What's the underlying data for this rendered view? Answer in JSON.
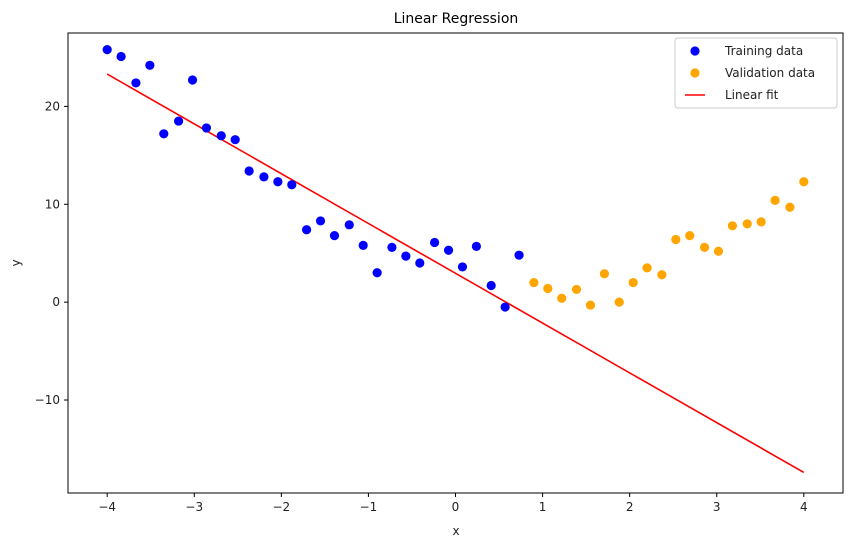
{
  "chart_data": {
    "type": "scatter",
    "title": "Linear Regression",
    "xlabel": "x",
    "ylabel": "y",
    "xlim": [
      -4.45,
      4.45
    ],
    "ylim": [
      -19.5,
      27.5
    ],
    "xticks": [
      -4,
      -3,
      -2,
      -1,
      0,
      1,
      2,
      3,
      4
    ],
    "yticks": [
      -10,
      0,
      10,
      20
    ],
    "xtick_labels": [
      "−4",
      "−3",
      "−2",
      "−1",
      "0",
      "1",
      "2",
      "3",
      "4"
    ],
    "ytick_labels": [
      "−10",
      "0",
      "10",
      "20"
    ],
    "grid": false,
    "legend_position": "top-right",
    "series": [
      {
        "name": "Training data",
        "kind": "scatter",
        "color": "#0000ff",
        "points": [
          [
            -4.0,
            25.8
          ],
          [
            -3.84,
            25.1
          ],
          [
            -3.67,
            22.4
          ],
          [
            -3.51,
            24.2
          ],
          [
            -3.35,
            17.2
          ],
          [
            -3.18,
            18.5
          ],
          [
            -3.02,
            22.7
          ],
          [
            -2.86,
            17.8
          ],
          [
            -2.69,
            17.0
          ],
          [
            -2.53,
            16.6
          ],
          [
            -2.37,
            13.4
          ],
          [
            -2.2,
            12.8
          ],
          [
            -2.04,
            12.3
          ],
          [
            -1.88,
            12.0
          ],
          [
            -1.71,
            7.4
          ],
          [
            -1.55,
            8.3
          ],
          [
            -1.39,
            6.8
          ],
          [
            -1.22,
            7.9
          ],
          [
            -1.06,
            5.8
          ],
          [
            -0.9,
            3.0
          ],
          [
            -0.73,
            5.6
          ],
          [
            -0.57,
            4.7
          ],
          [
            -0.41,
            4.0
          ],
          [
            -0.24,
            6.1
          ],
          [
            -0.08,
            5.3
          ],
          [
            0.08,
            3.6
          ],
          [
            0.24,
            5.7
          ],
          [
            0.41,
            1.7
          ],
          [
            0.57,
            -0.5
          ],
          [
            0.73,
            4.8
          ]
        ]
      },
      {
        "name": "Validation data",
        "kind": "scatter",
        "color": "#ffa500",
        "points": [
          [
            0.9,
            2.0
          ],
          [
            1.06,
            1.4
          ],
          [
            1.22,
            0.4
          ],
          [
            1.39,
            1.3
          ],
          [
            1.55,
            -0.3
          ],
          [
            1.71,
            2.9
          ],
          [
            1.88,
            0.0
          ],
          [
            2.04,
            2.0
          ],
          [
            2.2,
            3.5
          ],
          [
            2.37,
            2.8
          ],
          [
            2.53,
            6.4
          ],
          [
            2.69,
            6.8
          ],
          [
            2.86,
            5.6
          ],
          [
            3.02,
            5.2
          ],
          [
            3.18,
            7.8
          ],
          [
            3.35,
            8.0
          ],
          [
            3.51,
            8.2
          ],
          [
            3.67,
            10.4
          ],
          [
            3.84,
            9.7
          ],
          [
            4.0,
            12.3
          ]
        ]
      },
      {
        "name": "Linear fit",
        "kind": "line",
        "color": "#ff0000",
        "points": [
          [
            -4.0,
            23.3
          ],
          [
            4.0,
            -17.4
          ]
        ]
      }
    ]
  }
}
